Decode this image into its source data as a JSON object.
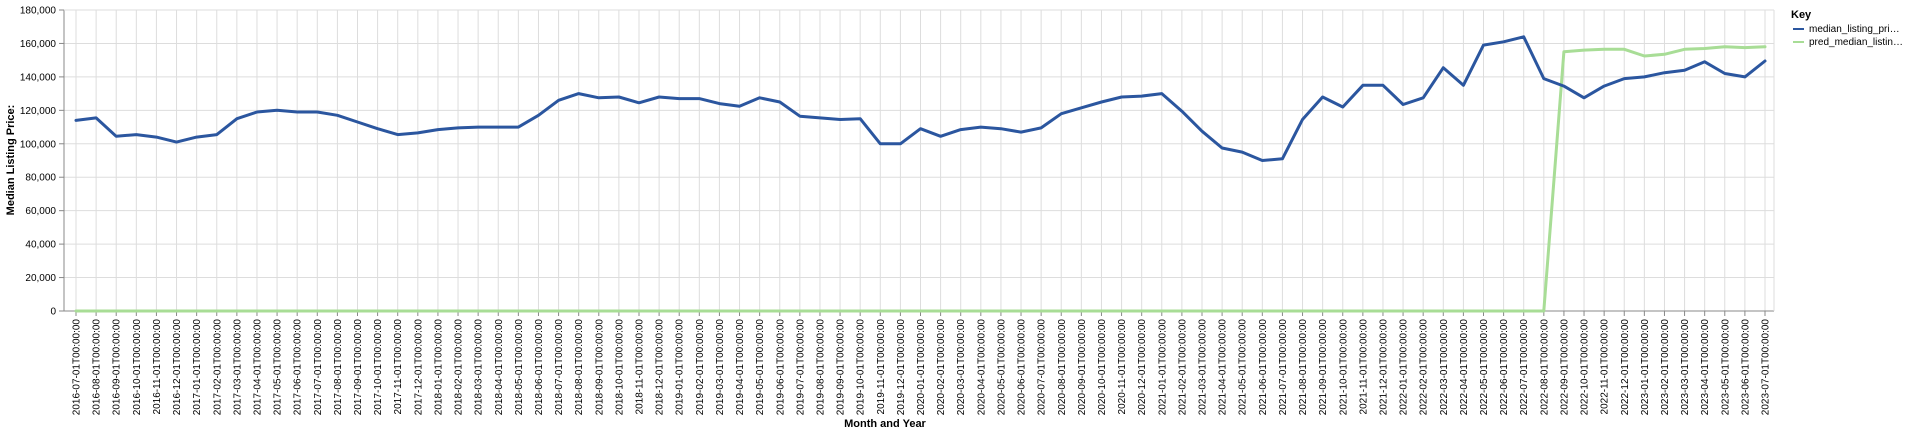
{
  "chart_data": {
    "type": "line",
    "xlabel": "Month and Year",
    "ylabel": "Median Listing Price:",
    "ylim": [
      0,
      180000
    ],
    "y_ticks": [
      0,
      20000,
      40000,
      60000,
      80000,
      100000,
      120000,
      140000,
      160000,
      180000
    ],
    "y_tick_labels": [
      "0",
      "20,000",
      "40,000",
      "60,000",
      "80,000",
      "100,000",
      "120,000",
      "140,000",
      "160,000",
      "180,000"
    ],
    "grid": true,
    "legend_title": "Key",
    "legend_position": "top-right",
    "x": [
      "2016-07-01T00:00:00",
      "2016-08-01T00:00:00",
      "2016-09-01T00:00:00",
      "2016-10-01T00:00:00",
      "2016-11-01T00:00:00",
      "2016-12-01T00:00:00",
      "2017-01-01T00:00:00",
      "2017-02-01T00:00:00",
      "2017-03-01T00:00:00",
      "2017-04-01T00:00:00",
      "2017-05-01T00:00:00",
      "2017-06-01T00:00:00",
      "2017-07-01T00:00:00",
      "2017-08-01T00:00:00",
      "2017-09-01T00:00:00",
      "2017-10-01T00:00:00",
      "2017-11-01T00:00:00",
      "2017-12-01T00:00:00",
      "2018-01-01T00:00:00",
      "2018-02-01T00:00:00",
      "2018-03-01T00:00:00",
      "2018-04-01T00:00:00",
      "2018-05-01T00:00:00",
      "2018-06-01T00:00:00",
      "2018-07-01T00:00:00",
      "2018-08-01T00:00:00",
      "2018-09-01T00:00:00",
      "2018-10-01T00:00:00",
      "2018-11-01T00:00:00",
      "2018-12-01T00:00:00",
      "2019-01-01T00:00:00",
      "2019-02-01T00:00:00",
      "2019-03-01T00:00:00",
      "2019-04-01T00:00:00",
      "2019-05-01T00:00:00",
      "2019-06-01T00:00:00",
      "2019-07-01T00:00:00",
      "2019-08-01T00:00:00",
      "2019-09-01T00:00:00",
      "2019-10-01T00:00:00",
      "2019-11-01T00:00:00",
      "2019-12-01T00:00:00",
      "2020-01-01T00:00:00",
      "2020-02-01T00:00:00",
      "2020-03-01T00:00:00",
      "2020-04-01T00:00:00",
      "2020-05-01T00:00:00",
      "2020-06-01T00:00:00",
      "2020-07-01T00:00:00",
      "2020-08-01T00:00:00",
      "2020-09-01T00:00:00",
      "2020-10-01T00:00:00",
      "2020-11-01T00:00:00",
      "2020-12-01T00:00:00",
      "2021-01-01T00:00:00",
      "2021-02-01T00:00:00",
      "2021-03-01T00:00:00",
      "2021-04-01T00:00:00",
      "2021-05-01T00:00:00",
      "2021-06-01T00:00:00",
      "2021-07-01T00:00:00",
      "2021-08-01T00:00:00",
      "2021-09-01T00:00:00",
      "2021-10-01T00:00:00",
      "2021-11-01T00:00:00",
      "2021-12-01T00:00:00",
      "2022-01-01T00:00:00",
      "2022-02-01T00:00:00",
      "2022-03-01T00:00:00",
      "2022-04-01T00:00:00",
      "2022-05-01T00:00:00",
      "2022-06-01T00:00:00",
      "2022-07-01T00:00:00",
      "2022-08-01T00:00:00",
      "2022-09-01T00:00:00",
      "2022-10-01T00:00:00",
      "2022-11-01T00:00:00",
      "2022-12-01T00:00:00",
      "2023-01-01T00:00:00",
      "2023-02-01T00:00:00",
      "2023-03-01T00:00:00",
      "2023-04-01T00:00:00",
      "2023-05-01T00:00:00",
      "2023-06-01T00:00:00",
      "2023-07-01T00:00:00"
    ],
    "series": [
      {
        "name": "median_listing_pri…",
        "color": "#2b569f",
        "values": [
          114000,
          115500,
          104500,
          105500,
          104000,
          101000,
          104000,
          105500,
          115000,
          119000,
          120000,
          119000,
          119000,
          117000,
          113000,
          109000,
          105500,
          106500,
          108500,
          109500,
          110000,
          110000,
          110000,
          117000,
          126000,
          130000,
          127500,
          128000,
          124500,
          128000,
          127000,
          127000,
          124000,
          122500,
          127500,
          125000,
          116500,
          115500,
          114500,
          115000,
          100000,
          100000,
          109000,
          104500,
          108500,
          110000,
          109000,
          107000,
          109500,
          118000,
          121500,
          125000,
          128000,
          128500,
          130000,
          119500,
          107500,
          97500,
          95000,
          90000,
          91000,
          114500,
          128000,
          122000,
          135000,
          135000,
          123500,
          127500,
          145500,
          135000,
          159000,
          161000,
          164000,
          139000,
          134500,
          127500,
          134500,
          139000,
          140000,
          142500,
          144000,
          149000,
          142000,
          140000,
          149500
        ]
      },
      {
        "name": "pred_median_listin…",
        "color": "#a8dd96",
        "values": [
          0,
          0,
          0,
          0,
          0,
          0,
          0,
          0,
          0,
          0,
          0,
          0,
          0,
          0,
          0,
          0,
          0,
          0,
          0,
          0,
          0,
          0,
          0,
          0,
          0,
          0,
          0,
          0,
          0,
          0,
          0,
          0,
          0,
          0,
          0,
          0,
          0,
          0,
          0,
          0,
          0,
          0,
          0,
          0,
          0,
          0,
          0,
          0,
          0,
          0,
          0,
          0,
          0,
          0,
          0,
          0,
          0,
          0,
          0,
          0,
          0,
          0,
          0,
          0,
          0,
          0,
          0,
          0,
          0,
          0,
          0,
          0,
          0,
          0,
          155000,
          156000,
          156500,
          156500,
          152500,
          153500,
          156500,
          157000,
          158000,
          157500,
          158000
        ]
      }
    ]
  }
}
